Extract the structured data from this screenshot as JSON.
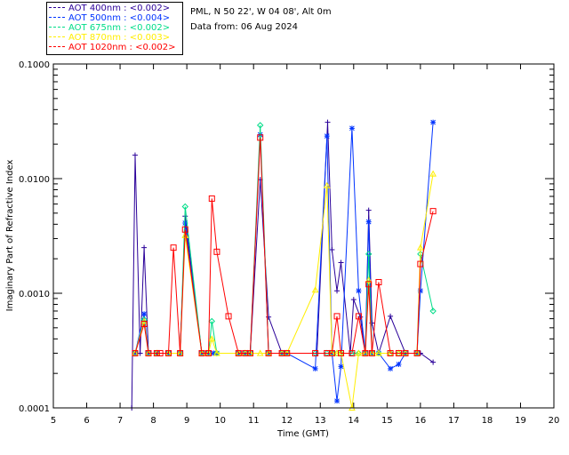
{
  "legend": [
    {
      "label": "AOT  400nm : <0.002>",
      "color": "#2a0099"
    },
    {
      "label": "AOT  500nm : <0.004>",
      "color": "#0033ff"
    },
    {
      "label": "AOT  675nm : <0.002>",
      "color": "#00dd88"
    },
    {
      "label": "AOT  870nm : <0.003>",
      "color": "#ffee00"
    },
    {
      "label": "AOT 1020nm : <0.002>",
      "color": "#ff0000"
    }
  ],
  "site_info": "PML, N 50 22', W 04 08', Alt 0m",
  "date_info": "Data from: 06 Aug 2024",
  "chart_data": {
    "type": "line",
    "xlabel": "Time (GMT)",
    "ylabel": "Imaginary Part of Refractive Index",
    "xlim": [
      5,
      20
    ],
    "ylim": [
      0.0001,
      0.1
    ],
    "yscale": "log",
    "x_ticks": [
      "5",
      "6",
      "7",
      "8",
      "9",
      "10",
      "11",
      "12",
      "13",
      "14",
      "15",
      "16",
      "17",
      "18",
      "19",
      "20"
    ],
    "y_ticks": [
      "0.0001",
      "0.0010",
      "0.0100",
      "0.1000"
    ],
    "series": [
      {
        "name": "AOT 400nm",
        "color": "#2a0099",
        "marker": "+",
        "points": [
          [
            7.35,
            0.0001
          ],
          [
            7.45,
            0.016
          ],
          [
            7.6,
            0.0003
          ],
          [
            7.72,
            0.0025
          ],
          [
            7.85,
            0.0003
          ],
          [
            8.1,
            0.0003
          ],
          [
            8.45,
            0.0003
          ],
          [
            8.8,
            0.0003
          ],
          [
            8.95,
            0.0047
          ],
          [
            9.45,
            0.0003
          ],
          [
            9.65,
            0.0003
          ],
          [
            9.8,
            0.0003
          ],
          [
            10.55,
            0.0003
          ],
          [
            10.75,
            0.0003
          ],
          [
            10.9,
            0.0003
          ],
          [
            11.2,
            0.0098
          ],
          [
            11.45,
            0.00062
          ],
          [
            11.85,
            0.0003
          ],
          [
            12.0,
            0.0003
          ],
          [
            12.9,
            0.0003
          ],
          [
            13.22,
            0.031
          ],
          [
            13.35,
            0.0024
          ],
          [
            13.5,
            0.00105
          ],
          [
            13.62,
            0.00185
          ],
          [
            13.9,
            0.0003
          ],
          [
            14.0,
            0.00088
          ],
          [
            14.2,
            0.00062
          ],
          [
            14.35,
            0.0003
          ],
          [
            14.45,
            0.0053
          ],
          [
            14.55,
            0.00055
          ],
          [
            14.75,
            0.0003
          ],
          [
            15.1,
            0.00063
          ],
          [
            15.55,
            0.0003
          ],
          [
            15.9,
            0.0003
          ],
          [
            16.0,
            0.0003
          ],
          [
            16.38,
            0.00025
          ]
        ]
      },
      {
        "name": "AOT 500nm",
        "color": "#0033ff",
        "marker": "*",
        "points": [
          [
            7.45,
            0.0003
          ],
          [
            7.72,
            0.00066
          ],
          [
            7.85,
            0.0003
          ],
          [
            8.1,
            0.0003
          ],
          [
            8.45,
            0.0003
          ],
          [
            8.8,
            0.0003
          ],
          [
            8.95,
            0.0041
          ],
          [
            9.45,
            0.0003
          ],
          [
            9.65,
            0.0003
          ],
          [
            9.8,
            0.0003
          ],
          [
            9.9,
            0.0003
          ],
          [
            10.55,
            0.0003
          ],
          [
            10.75,
            0.0003
          ],
          [
            10.9,
            0.0003
          ],
          [
            11.2,
            0.0242
          ],
          [
            11.45,
            0.0003
          ],
          [
            11.85,
            0.0003
          ],
          [
            12.0,
            0.0003
          ],
          [
            12.85,
            0.00022
          ],
          [
            13.2,
            0.0235
          ],
          [
            13.35,
            0.0003
          ],
          [
            13.5,
            0.000115
          ],
          [
            13.62,
            0.00023
          ],
          [
            13.95,
            0.0275
          ],
          [
            14.15,
            0.00105
          ],
          [
            14.35,
            0.0003
          ],
          [
            14.45,
            0.0042
          ],
          [
            14.55,
            0.0003
          ],
          [
            14.75,
            0.0003
          ],
          [
            15.1,
            0.00022
          ],
          [
            15.35,
            0.00024
          ],
          [
            15.55,
            0.0003
          ],
          [
            15.9,
            0.0003
          ],
          [
            16.0,
            0.00105
          ],
          [
            16.38,
            0.031
          ]
        ]
      },
      {
        "name": "AOT 675nm",
        "color": "#00dd88",
        "marker": "diamond",
        "points": [
          [
            7.45,
            0.0003
          ],
          [
            7.72,
            0.00059
          ],
          [
            7.85,
            0.0003
          ],
          [
            8.1,
            0.0003
          ],
          [
            8.45,
            0.0003
          ],
          [
            8.8,
            0.0003
          ],
          [
            8.95,
            0.0057
          ],
          [
            9.45,
            0.0003
          ],
          [
            9.65,
            0.0003
          ],
          [
            9.75,
            0.00057
          ],
          [
            9.9,
            0.0003
          ],
          [
            10.55,
            0.0003
          ],
          [
            10.75,
            0.0003
          ],
          [
            10.9,
            0.0003
          ],
          [
            11.2,
            0.0292
          ],
          [
            11.45,
            0.0003
          ],
          [
            11.85,
            0.0003
          ],
          [
            12.0,
            0.0003
          ],
          [
            12.85,
            0.0003
          ],
          [
            13.2,
            0.0003
          ],
          [
            13.35,
            0.0003
          ],
          [
            13.5,
            0.0003
          ],
          [
            13.62,
            0.0003
          ],
          [
            13.95,
            0.0003
          ],
          [
            14.15,
            0.0003
          ],
          [
            14.35,
            0.0003
          ],
          [
            14.45,
            0.0022
          ],
          [
            14.55,
            0.0003
          ],
          [
            14.75,
            0.0003
          ],
          [
            15.1,
            0.0003
          ],
          [
            15.35,
            0.0003
          ],
          [
            15.55,
            0.0003
          ],
          [
            15.9,
            0.0003
          ],
          [
            16.0,
            0.0022
          ],
          [
            16.38,
            0.0007
          ]
        ]
      },
      {
        "name": "AOT 870nm",
        "color": "#ffee00",
        "marker": "triangle",
        "points": [
          [
            7.45,
            0.0003
          ],
          [
            7.72,
            0.00057
          ],
          [
            7.85,
            0.0003
          ],
          [
            8.1,
            0.0003
          ],
          [
            8.45,
            0.0003
          ],
          [
            8.8,
            0.0003
          ],
          [
            8.95,
            0.0032
          ],
          [
            9.45,
            0.0003
          ],
          [
            9.65,
            0.0003
          ],
          [
            9.75,
            0.0004
          ],
          [
            9.9,
            0.0003
          ],
          [
            10.55,
            0.0003
          ],
          [
            10.75,
            0.0003
          ],
          [
            10.9,
            0.0003
          ],
          [
            11.2,
            0.0003
          ],
          [
            11.45,
            0.0003
          ],
          [
            11.85,
            0.0003
          ],
          [
            12.0,
            0.0003
          ],
          [
            12.85,
            0.00107
          ],
          [
            13.2,
            0.0087
          ],
          [
            13.35,
            0.0003
          ],
          [
            13.5,
            0.0003
          ],
          [
            13.62,
            0.0003
          ],
          [
            13.95,
            0.0001
          ],
          [
            14.15,
            0.0003
          ],
          [
            14.35,
            0.0003
          ],
          [
            14.45,
            0.0013
          ],
          [
            14.55,
            0.0003
          ],
          [
            14.75,
            0.0003
          ],
          [
            15.1,
            0.0003
          ],
          [
            15.35,
            0.0003
          ],
          [
            15.55,
            0.0003
          ],
          [
            15.9,
            0.0003
          ],
          [
            16.0,
            0.0025
          ],
          [
            16.38,
            0.011
          ]
        ]
      },
      {
        "name": "AOT 1020nm",
        "color": "#ff0000",
        "marker": "square",
        "points": [
          [
            7.45,
            0.0003
          ],
          [
            7.72,
            0.00054
          ],
          [
            7.85,
            0.0003
          ],
          [
            8.1,
            0.0003
          ],
          [
            8.2,
            0.0003
          ],
          [
            8.45,
            0.0003
          ],
          [
            8.6,
            0.0025
          ],
          [
            8.8,
            0.0003
          ],
          [
            8.95,
            0.0036
          ],
          [
            9.45,
            0.0003
          ],
          [
            9.65,
            0.0003
          ],
          [
            9.75,
            0.0067
          ],
          [
            9.9,
            0.0023
          ],
          [
            10.25,
            0.00063
          ],
          [
            10.55,
            0.0003
          ],
          [
            10.75,
            0.0003
          ],
          [
            10.9,
            0.0003
          ],
          [
            11.2,
            0.0228
          ],
          [
            11.45,
            0.0003
          ],
          [
            11.85,
            0.0003
          ],
          [
            12.0,
            0.0003
          ],
          [
            12.85,
            0.0003
          ],
          [
            13.2,
            0.0003
          ],
          [
            13.35,
            0.0003
          ],
          [
            13.5,
            0.00063
          ],
          [
            13.62,
            0.0003
          ],
          [
            13.95,
            0.0003
          ],
          [
            14.15,
            0.00063
          ],
          [
            14.35,
            0.0003
          ],
          [
            14.45,
            0.0012
          ],
          [
            14.55,
            0.0003
          ],
          [
            14.75,
            0.00125
          ],
          [
            15.1,
            0.0003
          ],
          [
            15.35,
            0.0003
          ],
          [
            15.55,
            0.0003
          ],
          [
            15.9,
            0.0003
          ],
          [
            16.0,
            0.0018
          ],
          [
            16.38,
            0.0052
          ]
        ]
      }
    ]
  }
}
